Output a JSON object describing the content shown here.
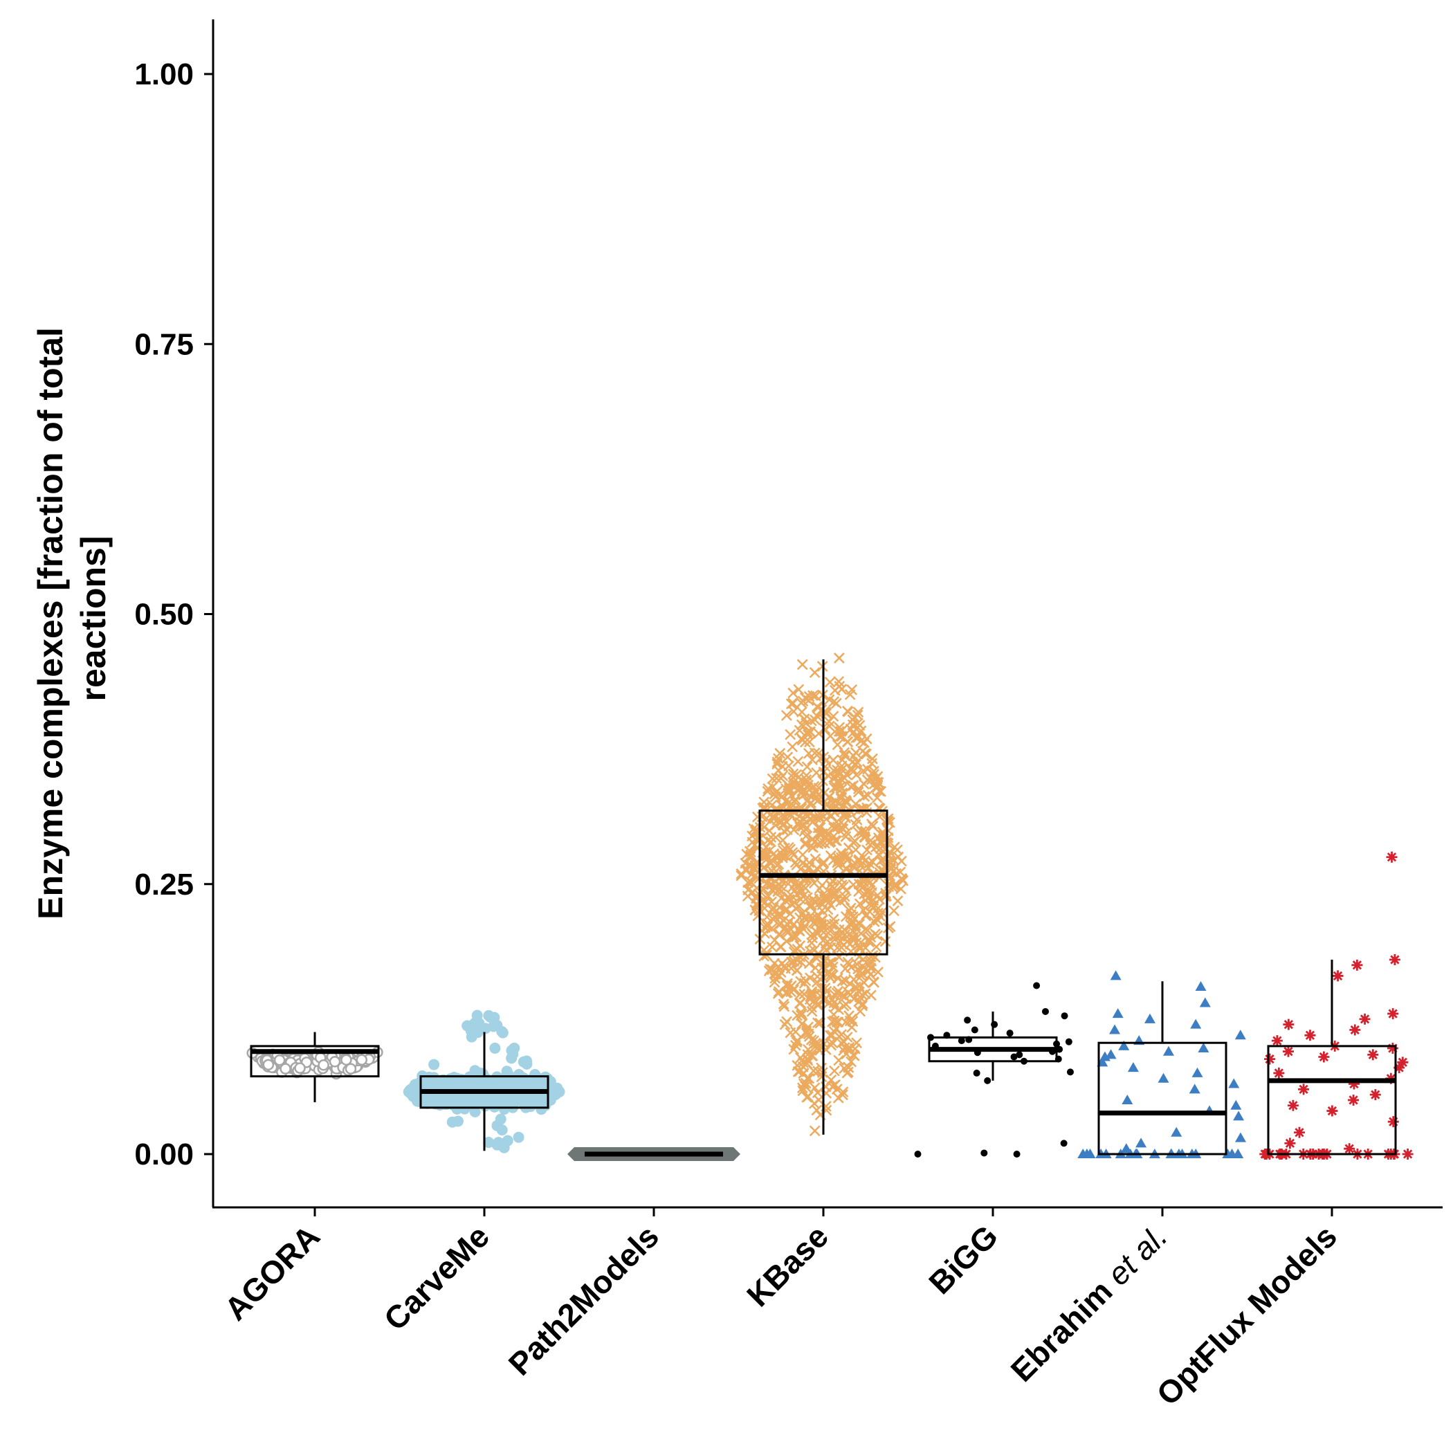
{
  "chart_data": {
    "type": "boxplot",
    "ylabel_lines": [
      "Enzyme complexes [fraction of total",
      "reactions]"
    ],
    "ylim": [
      -0.05,
      1.05
    ],
    "yticks": [
      {
        "value": 0.0,
        "label": "0.00"
      },
      {
        "value": 0.25,
        "label": "0.25"
      },
      {
        "value": 0.5,
        "label": "0.50"
      },
      {
        "value": 0.75,
        "label": "0.75"
      },
      {
        "value": 1.0,
        "label": "1.00"
      }
    ],
    "categories": [
      {
        "label": "AGORA",
        "italic_suffix": "",
        "color": "#a6a6a6",
        "marker": "open-circle",
        "q1": 0.072,
        "median": 0.095,
        "q3": 0.1,
        "whisker_low": 0.048,
        "whisker_high": 0.113,
        "data_min": 0.048,
        "data_max": 0.113
      },
      {
        "label": "CarveMe",
        "italic_suffix": "",
        "color": "#a2d2e3",
        "marker": "filled-circle",
        "q1": 0.043,
        "median": 0.058,
        "q3": 0.072,
        "whisker_low": 0.003,
        "whisker_high": 0.113,
        "data_min": 0.003,
        "data_max": 0.13
      },
      {
        "label": "Path2Models",
        "italic_suffix": "",
        "color": "#6f7776",
        "marker": "diamond",
        "q1": 0.0,
        "median": 0.0,
        "q3": 0.0,
        "whisker_low": 0.0,
        "whisker_high": 0.0,
        "data_min": 0.0,
        "data_max": 0.0
      },
      {
        "label": "KBase",
        "italic_suffix": "",
        "color": "#ebaa5e",
        "marker": "cross",
        "q1": 0.185,
        "median": 0.258,
        "q3": 0.318,
        "whisker_low": 0.018,
        "whisker_high": 0.458,
        "data_min": 0.018,
        "data_max": 0.46
      },
      {
        "label": "BiGG",
        "italic_suffix": "",
        "color": "#000000",
        "marker": "small-dot",
        "q1": 0.086,
        "median": 0.097,
        "q3": 0.108,
        "whisker_low": 0.068,
        "whisker_high": 0.132,
        "data_min": 0.0,
        "data_max": 0.156,
        "points": [
          0.0,
          0.001,
          0.0,
          0.01,
          0.068,
          0.075,
          0.076,
          0.086,
          0.088,
          0.09,
          0.092,
          0.094,
          0.095,
          0.097,
          0.098,
          0.1,
          0.102,
          0.104,
          0.105,
          0.106,
          0.108,
          0.11,
          0.112,
          0.115,
          0.12,
          0.124,
          0.128,
          0.132,
          0.156
        ]
      },
      {
        "label": "Ebrahim ",
        "italic_suffix": "et al.",
        "color": "#3c7dc4",
        "marker": "triangle",
        "q1": 0.0,
        "median": 0.038,
        "q3": 0.103,
        "whisker_low": 0.0,
        "whisker_high": 0.16,
        "data_min": 0.0,
        "data_max": 0.165,
        "points": [
          0.0,
          0.0,
          0.0,
          0.0,
          0.0,
          0.0,
          0.0,
          0.0,
          0.0,
          0.0,
          0.0,
          0.0,
          0.0,
          0.0,
          0.0,
          0.0,
          0.0,
          0.0,
          0.0,
          0.0,
          0.005,
          0.01,
          0.015,
          0.02,
          0.035,
          0.04,
          0.045,
          0.05,
          0.06,
          0.065,
          0.07,
          0.075,
          0.08,
          0.085,
          0.09,
          0.092,
          0.095,
          0.098,
          0.1,
          0.105,
          0.11,
          0.115,
          0.12,
          0.125,
          0.13,
          0.14,
          0.155,
          0.165
        ]
      },
      {
        "label": "OptFlux Models",
        "italic_suffix": "",
        "color": "#d3222d",
        "marker": "asterisk",
        "q1": 0.0,
        "median": 0.068,
        "q3": 0.1,
        "whisker_low": 0.0,
        "whisker_high": 0.18,
        "data_min": 0.0,
        "data_max": 0.275,
        "points": [
          0.0,
          0.0,
          0.0,
          0.0,
          0.0,
          0.0,
          0.0,
          0.0,
          0.0,
          0.0,
          0.0,
          0.0,
          0.0,
          0.0,
          0.0,
          0.0,
          0.0,
          0.0,
          0.0,
          0.0,
          0.0,
          0.0,
          0.005,
          0.01,
          0.02,
          0.03,
          0.04,
          0.045,
          0.05,
          0.055,
          0.06,
          0.065,
          0.07,
          0.075,
          0.08,
          0.085,
          0.088,
          0.09,
          0.092,
          0.095,
          0.098,
          0.1,
          0.105,
          0.11,
          0.115,
          0.12,
          0.125,
          0.13,
          0.165,
          0.175,
          0.18,
          0.275
        ]
      }
    ]
  }
}
